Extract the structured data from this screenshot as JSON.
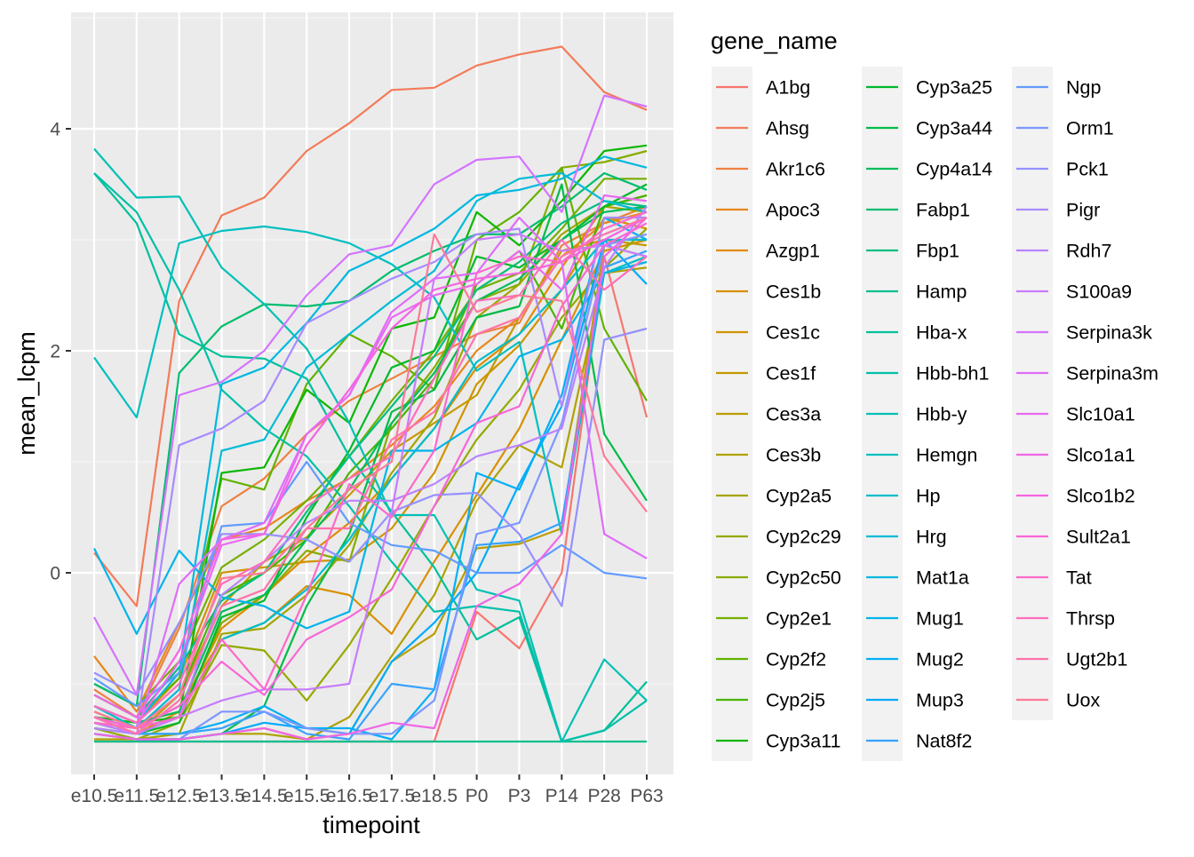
{
  "chart_data": {
    "type": "line",
    "xlabel": "timepoint",
    "ylabel": "mean_lcpm",
    "ylim": [
      -1.85,
      5.05
    ],
    "yticks": [
      0,
      2,
      4
    ],
    "categories": [
      "e10.5",
      "e11.5",
      "e12.5",
      "e13.5",
      "e14.5",
      "e15.5",
      "e16.5",
      "e17.5",
      "e18.5",
      "P0",
      "P3",
      "P14",
      "P28",
      "P63"
    ],
    "legend": {
      "title": "gene_name",
      "placement": "right",
      "columns": 3
    },
    "grid": true,
    "series": [
      {
        "name": "A1bg",
        "color": "#F8766D",
        "values": [
          -1.52,
          -1.52,
          -1.52,
          -1.52,
          -1.52,
          -1.52,
          -1.52,
          -1.52,
          -1.52,
          -0.35,
          -0.68,
          0.0,
          2.85,
          1.4
        ]
      },
      {
        "name": "Ahsg",
        "color": "#F37B59",
        "values": [
          0.18,
          -0.3,
          2.45,
          3.22,
          3.38,
          3.8,
          4.05,
          4.35,
          4.37,
          4.57,
          4.67,
          4.74,
          4.33,
          4.17
        ]
      },
      {
        "name": "Akr1c6",
        "color": "#ED8141",
        "values": [
          -1.05,
          -1.3,
          -0.5,
          0.6,
          0.85,
          1.25,
          1.55,
          1.75,
          1.95,
          2.15,
          2.25,
          2.95,
          3.15,
          3.3
        ]
      },
      {
        "name": "Apoc3",
        "color": "#E7861B",
        "values": [
          -0.75,
          -1.25,
          -0.45,
          0.3,
          0.4,
          0.65,
          0.85,
          1.15,
          1.5,
          2.0,
          2.3,
          2.85,
          3.15,
          3.25
        ]
      },
      {
        "name": "Azgp1",
        "color": "#E08B00",
        "values": [
          -1.4,
          -1.45,
          -1.25,
          -0.5,
          -0.2,
          0.15,
          0.45,
          0.85,
          1.3,
          1.85,
          2.15,
          2.75,
          3.3,
          3.4
        ]
      },
      {
        "name": "Ces1b",
        "color": "#D89000",
        "values": [
          -1.35,
          -1.4,
          -1.2,
          -0.6,
          -0.45,
          -0.12,
          -0.2,
          -0.55,
          0.1,
          0.7,
          1.3,
          2.1,
          2.9,
          3.0
        ]
      },
      {
        "name": "Ces1c",
        "color": "#CF9400",
        "values": [
          -1.2,
          -1.35,
          -0.95,
          0.0,
          0.05,
          0.1,
          0.12,
          0.4,
          0.9,
          1.7,
          2.05,
          2.55,
          3.2,
          3.1
        ]
      },
      {
        "name": "Ces1f",
        "color": "#C59900",
        "values": [
          -1.3,
          -1.45,
          -1.1,
          -0.3,
          0.1,
          0.32,
          0.7,
          1.1,
          1.35,
          1.6,
          2.3,
          2.9,
          3.0,
          2.95
        ]
      },
      {
        "name": "Ces3a",
        "color": "#BB9D00",
        "values": [
          -1.45,
          -1.5,
          -1.5,
          -1.45,
          -1.4,
          -1.5,
          -1.45,
          -0.8,
          -0.55,
          0.22,
          0.26,
          0.4,
          2.95,
          2.85
        ]
      },
      {
        "name": "Ces3b",
        "color": "#AFA100",
        "values": [
          -1.5,
          -1.5,
          -1.5,
          -1.45,
          -1.45,
          -1.5,
          -1.3,
          -0.75,
          -0.2,
          0.65,
          1.15,
          0.95,
          2.7,
          2.75
        ]
      },
      {
        "name": "Cyp2a5",
        "color": "#A3A500",
        "values": [
          -1.45,
          -1.5,
          -1.45,
          -0.55,
          -0.5,
          -0.2,
          0.25,
          0.9,
          1.4,
          2.3,
          2.6,
          3.05,
          3.3,
          3.25
        ]
      },
      {
        "name": "Cyp2c29",
        "color": "#96A900",
        "values": [
          -1.4,
          -1.5,
          -1.35,
          -0.65,
          -0.7,
          -1.15,
          -0.65,
          -0.05,
          0.6,
          1.2,
          1.65,
          2.3,
          2.75,
          3.1
        ]
      },
      {
        "name": "Cyp2c50",
        "color": "#87AC00",
        "values": [
          -1.35,
          -1.45,
          -1.3,
          -0.45,
          -0.2,
          0.2,
          0.1,
          1.35,
          1.85,
          2.45,
          2.6,
          3.65,
          3.7,
          3.8
        ]
      },
      {
        "name": "Cyp2e1",
        "color": "#76AF00",
        "values": [
          -1.0,
          -1.2,
          -0.8,
          0.05,
          0.3,
          0.65,
          1.05,
          1.55,
          2.0,
          2.55,
          2.7,
          3.1,
          3.55,
          3.55
        ]
      },
      {
        "name": "Cyp2f2",
        "color": "#62B200",
        "values": [
          -1.1,
          -1.3,
          -0.95,
          0.85,
          0.75,
          1.7,
          2.15,
          1.95,
          1.65,
          3.0,
          3.25,
          3.65,
          2.2,
          1.55
        ]
      },
      {
        "name": "Cyp2j5",
        "color": "#47B500",
        "values": [
          -1.25,
          -1.4,
          -1.1,
          -0.2,
          0.0,
          0.3,
          0.9,
          1.3,
          1.75,
          2.6,
          2.9,
          2.2,
          3.3,
          3.4
        ]
      },
      {
        "name": "Cyp3a11",
        "color": "#0CB702",
        "values": [
          -1.3,
          -1.35,
          -1.3,
          0.9,
          0.95,
          1.65,
          1.35,
          2.2,
          2.3,
          3.25,
          2.95,
          3.35,
          3.8,
          3.85
        ]
      },
      {
        "name": "Cyp3a25",
        "color": "#00B92A",
        "values": [
          -1.4,
          -1.45,
          -1.35,
          -0.4,
          -0.25,
          0.5,
          1.1,
          1.85,
          2.0,
          2.85,
          2.75,
          3.0,
          3.3,
          3.5
        ]
      },
      {
        "name": "Cyp3a44",
        "color": "#00BB47",
        "values": [
          -1.45,
          -1.5,
          -1.5,
          -1.45,
          -1.2,
          -0.3,
          0.35,
          1.45,
          1.65,
          2.3,
          2.4,
          3.5,
          1.25,
          0.65
        ]
      },
      {
        "name": "Cyp4a14",
        "color": "#00BC5C",
        "values": [
          -1.2,
          -1.35,
          -1.25,
          -0.35,
          -0.2,
          0.3,
          0.75,
          1.35,
          1.8,
          2.45,
          2.65,
          3.0,
          3.25,
          3.3
        ]
      },
      {
        "name": "Fabp1",
        "color": "#00BD6E",
        "values": [
          -1.0,
          -1.2,
          1.8,
          2.22,
          2.42,
          2.4,
          2.45,
          2.72,
          2.9,
          3.05,
          3.05,
          3.3,
          3.6,
          3.45
        ]
      },
      {
        "name": "Fbp1",
        "color": "#00BE7E",
        "values": [
          -1.1,
          -1.3,
          -0.85,
          -0.25,
          0.0,
          0.55,
          1.05,
          1.5,
          1.95,
          2.55,
          2.8,
          3.15,
          3.35,
          3.3
        ]
      },
      {
        "name": "Hamp",
        "color": "#00BF8D",
        "values": [
          -1.52,
          -1.52,
          -1.52,
          -1.52,
          -1.52,
          -1.52,
          -1.52,
          -1.52,
          -1.52,
          -1.52,
          -1.52,
          -1.52,
          -1.52,
          -1.52
        ]
      },
      {
        "name": "Hba-x",
        "color": "#00C09B",
        "values": [
          3.6,
          3.15,
          2.15,
          1.95,
          1.93,
          1.75,
          1.05,
          0.55,
          0.05,
          -0.6,
          -0.4,
          -1.52,
          -1.42,
          -0.98
        ]
      },
      {
        "name": "Hbb-bh1",
        "color": "#00C0A8",
        "values": [
          3.6,
          3.25,
          2.55,
          1.65,
          1.3,
          1.05,
          0.6,
          0.1,
          -0.35,
          -0.3,
          -0.35,
          -1.52,
          -1.42,
          -1.15
        ]
      },
      {
        "name": "Hbb-y",
        "color": "#00C0B4",
        "values": [
          3.82,
          3.38,
          3.39,
          2.75,
          2.42,
          2.02,
          1.35,
          0.52,
          0.52,
          -0.15,
          -0.25,
          -1.52,
          -0.78,
          -1.15
        ]
      },
      {
        "name": "Hemgn",
        "color": "#00BFC0",
        "values": [
          1.94,
          1.4,
          2.97,
          3.08,
          3.12,
          3.07,
          2.97,
          2.78,
          2.48,
          1.82,
          2.08,
          0.35,
          2.7,
          2.85
        ]
      },
      {
        "name": "Hp",
        "color": "#00BDCC",
        "values": [
          -1.2,
          -1.4,
          -1.3,
          -0.6,
          -0.45,
          -0.15,
          0.3,
          0.85,
          1.3,
          1.9,
          2.15,
          2.55,
          3.0,
          3.0
        ]
      },
      {
        "name": "Hrg",
        "color": "#00BBD6",
        "values": [
          -1.3,
          -1.4,
          -1.05,
          1.1,
          1.2,
          1.85,
          2.15,
          2.45,
          2.72,
          3.35,
          3.55,
          3.6,
          3.35,
          3.25
        ]
      },
      {
        "name": "Mat1a",
        "color": "#00B8E0",
        "values": [
          -1.2,
          -1.35,
          -0.9,
          1.7,
          1.85,
          2.25,
          2.72,
          2.9,
          3.1,
          3.4,
          3.45,
          3.55,
          3.75,
          3.65
        ]
      },
      {
        "name": "Mug1",
        "color": "#00B4EA",
        "values": [
          0.22,
          -0.55,
          0.2,
          -0.22,
          -0.3,
          -0.5,
          -0.35,
          1.1,
          1.1,
          1.35,
          1.95,
          2.1,
          2.7,
          2.8
        ]
      },
      {
        "name": "Mug2",
        "color": "#00B0F6",
        "values": [
          -1.35,
          -1.45,
          -1.45,
          -1.35,
          -1.2,
          -1.4,
          -1.4,
          -1.5,
          -1.05,
          0.9,
          0.75,
          1.6,
          3.2,
          3.0
        ]
      },
      {
        "name": "Mup3",
        "color": "#00ABFD",
        "values": [
          -1.45,
          -1.5,
          -1.5,
          -1.45,
          -1.35,
          -1.4,
          -1.45,
          -0.8,
          -0.45,
          0.0,
          0.8,
          1.5,
          3.0,
          2.6
        ]
      },
      {
        "name": "Nat8f2",
        "color": "#35A2FF",
        "values": [
          -1.4,
          -1.45,
          -1.45,
          -1.4,
          -1.25,
          -1.45,
          -1.5,
          -1.0,
          -1.05,
          0.25,
          0.28,
          0.45,
          2.75,
          2.9
        ]
      },
      {
        "name": "Ngp",
        "color": "#619CFF",
        "values": [
          -0.95,
          -1.2,
          -0.9,
          0.42,
          0.45,
          1.0,
          0.45,
          0.25,
          0.2,
          0.0,
          0.0,
          0.25,
          0.0,
          -0.05
        ]
      },
      {
        "name": "Orm1",
        "color": "#7C97FF",
        "values": [
          -1.45,
          -1.5,
          -1.5,
          -1.25,
          -1.25,
          -1.4,
          -1.45,
          -1.45,
          -1.15,
          0.35,
          0.45,
          1.35,
          2.95,
          3.05
        ]
      },
      {
        "name": "Pck1",
        "color": "#9590FF",
        "values": [
          -0.9,
          -1.1,
          -0.45,
          0.35,
          0.35,
          0.3,
          0.1,
          0.55,
          0.7,
          0.72,
          0.35,
          -0.3,
          2.1,
          2.2
        ]
      },
      {
        "name": "Pigr",
        "color": "#A88BFF",
        "values": [
          -1.3,
          -1.4,
          1.15,
          1.3,
          1.55,
          2.25,
          2.45,
          2.65,
          2.8,
          3.05,
          3.1,
          1.5,
          3.2,
          3.2
        ]
      },
      {
        "name": "Rdh7",
        "color": "#B983FF",
        "values": [
          -1.4,
          -1.45,
          -1.3,
          -0.2,
          0.1,
          0.45,
          0.65,
          0.65,
          0.8,
          1.05,
          1.15,
          1.3,
          2.75,
          3.3
        ]
      },
      {
        "name": "S100a9",
        "color": "#C77CFF",
        "values": [
          -1.35,
          -1.45,
          -1.3,
          -1.15,
          -1.05,
          -1.05,
          -1.0,
          0.55,
          2.65,
          3.0,
          3.05,
          2.9,
          2.95,
          2.85
        ]
      },
      {
        "name": "Serpina3k",
        "color": "#D474FF",
        "values": [
          -0.4,
          -1.1,
          1.6,
          1.72,
          2.0,
          2.5,
          2.87,
          2.95,
          3.5,
          3.72,
          3.75,
          3.25,
          4.3,
          4.2
        ]
      },
      {
        "name": "Serpina3m",
        "color": "#E06CFA",
        "values": [
          -1.3,
          -1.45,
          -0.1,
          0.3,
          0.45,
          1.25,
          1.6,
          2.35,
          2.65,
          2.7,
          3.2,
          2.8,
          0.35,
          0.13
        ]
      },
      {
        "name": "Slc10a1",
        "color": "#E96AF1",
        "values": [
          -1.2,
          -1.35,
          -0.8,
          0.25,
          0.35,
          1.25,
          1.6,
          2.3,
          2.5,
          2.6,
          2.9,
          2.55,
          3.4,
          3.35
        ]
      },
      {
        "name": "Slco1a1",
        "color": "#F066E6",
        "values": [
          -1.45,
          -1.5,
          -1.5,
          -1.45,
          -1.4,
          -1.5,
          -1.45,
          -1.35,
          -1.4,
          -0.3,
          -0.1,
          0.35,
          2.85,
          3.2
        ]
      },
      {
        "name": "Slco1b2",
        "color": "#F564E3",
        "values": [
          -1.1,
          -1.3,
          -0.7,
          0.3,
          0.35,
          1.15,
          1.65,
          2.2,
          2.55,
          2.65,
          2.7,
          2.8,
          3.0,
          3.2
        ]
      },
      {
        "name": "Sult2a1",
        "color": "#F966D7",
        "values": [
          -1.3,
          -1.4,
          -1.2,
          -0.8,
          -1.1,
          -0.6,
          -0.4,
          -0.15,
          0.6,
          1.35,
          1.5,
          2.4,
          2.95,
          3.15
        ]
      },
      {
        "name": "Tat",
        "color": "#FC69CA",
        "values": [
          -1.35,
          -1.4,
          -1.3,
          -0.6,
          -1.05,
          -0.2,
          0.8,
          0.5,
          1.1,
          2.7,
          2.85,
          2.8,
          3.1,
          3.25
        ]
      },
      {
        "name": "Thrsp",
        "color": "#FE6EBC",
        "values": [
          -1.2,
          -1.35,
          -1.0,
          -0.1,
          0.1,
          0.6,
          0.85,
          1.05,
          1.75,
          2.45,
          2.5,
          3.0,
          2.55,
          2.85
        ]
      },
      {
        "name": "Ugt2b1",
        "color": "#FF73AC",
        "values": [
          -1.3,
          -1.45,
          -1.15,
          -0.3,
          -0.15,
          0.4,
          0.4,
          1.2,
          1.45,
          2.15,
          2.3,
          2.85,
          3.05,
          3.2
        ]
      },
      {
        "name": "Uox",
        "color": "#FD7A99",
        "values": [
          -1.25,
          -1.4,
          -1.1,
          -0.05,
          0.0,
          0.4,
          0.75,
          1.0,
          3.05,
          2.35,
          2.5,
          2.45,
          1.05,
          0.55
        ]
      }
    ]
  }
}
